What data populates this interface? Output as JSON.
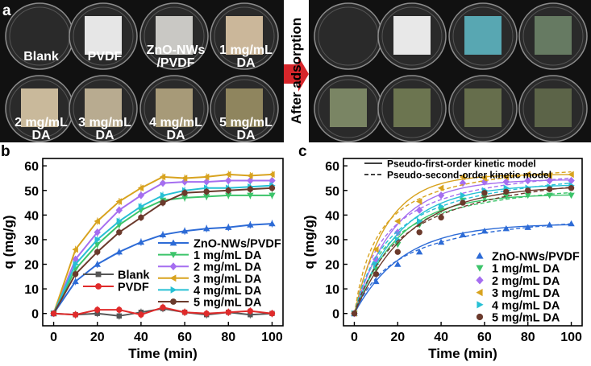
{
  "panel_a": {
    "letter": "a",
    "arrow_label": "After adsorption",
    "before_labels": [
      "Blank",
      "PVDF",
      "ZnO-NWs\n/PVDF",
      "1 mg/mL\nDA",
      "2 mg/mL\nDA",
      "3 mg/mL\nDA",
      "4 mg/mL\nDA",
      "5 mg/mL\nDA"
    ],
    "before_sample_colors": [
      null,
      "#e6e6e6",
      "#c9c8c4",
      "#cbb79a",
      "#c9b99b",
      "#b8ab90",
      "#a79a78",
      "#8f855e"
    ],
    "after_sample_colors": [
      null,
      "#e8e8e8",
      "#58a7b2",
      "#667a62",
      "#7a8564",
      "#6c7550",
      "#666e4c",
      "#5c6448"
    ],
    "colors": {
      "panel_background": "#111111",
      "dish_rim": "#8c8c8c",
      "dish_fill": "#2a2a2a",
      "label_text": "#ffffff",
      "arrow": "#d7262b"
    }
  },
  "panel_b": {
    "letter": "b"
  },
  "panel_c": {
    "letter": "c",
    "model_legend": [
      "Pseudo-first-order kinetic model",
      "Pseudo-second-order kinetic model"
    ]
  },
  "chart_data": [
    {
      "panel": "b",
      "type": "line",
      "xlabel": "Time (min)",
      "ylabel": "q (mg/g)",
      "xlim": [
        -5,
        105
      ],
      "ylim": [
        -5,
        63
      ],
      "xticks": [
        0,
        20,
        40,
        60,
        80,
        100
      ],
      "yticks": [
        0,
        10,
        20,
        30,
        40,
        50,
        60
      ],
      "x": [
        0,
        10,
        20,
        30,
        40,
        50,
        60,
        70,
        80,
        90,
        100
      ],
      "legend_position": "lower-right",
      "series": [
        {
          "name": "ZnO-NWs/PVDF",
          "color": "#2d6bd6",
          "marker": "triangle-up",
          "values": [
            0,
            13,
            20,
            25,
            29,
            32,
            33.5,
            34.5,
            35,
            36,
            36.5
          ]
        },
        {
          "name": "1 mg/mL DA",
          "color": "#3cc46a",
          "marker": "triangle-down",
          "values": [
            0,
            18,
            28,
            36,
            42,
            46,
            47,
            47.5,
            48,
            48,
            48
          ]
        },
        {
          "name": "2 mg/mL DA",
          "color": "#a56ef0",
          "marker": "diamond",
          "values": [
            0,
            22,
            33,
            42,
            48,
            53,
            53.5,
            53.5,
            54,
            54,
            54
          ]
        },
        {
          "name": "3 mg/mL DA",
          "color": "#d8a31f",
          "marker": "triangle-left",
          "values": [
            0,
            26,
            37.5,
            45.5,
            51,
            55.5,
            55,
            55.5,
            56.5,
            56,
            56.5
          ]
        },
        {
          "name": "4 mg/mL DA",
          "color": "#26c0d4",
          "marker": "triangle-right",
          "values": [
            0,
            20,
            30,
            37.5,
            43.5,
            48,
            50,
            51,
            51,
            51.5,
            52
          ]
        },
        {
          "name": "5 mg/mL DA",
          "color": "#6b3a2c",
          "marker": "circle",
          "values": [
            0,
            16,
            25,
            33,
            39,
            45,
            49,
            49.5,
            50,
            50.5,
            51
          ]
        },
        {
          "name": "Blank",
          "color": "#555555",
          "marker": "square",
          "values": [
            0,
            -0.5,
            0,
            -1,
            0.5,
            2,
            0.5,
            -0.5,
            0.5,
            -0.5,
            0
          ]
        },
        {
          "name": "PVDF",
          "color": "#e02b2b",
          "marker": "circle",
          "values": [
            0,
            -0.5,
            1.5,
            1.5,
            -0.5,
            2.5,
            0.5,
            0,
            0.5,
            1,
            0
          ]
        }
      ]
    },
    {
      "panel": "c",
      "type": "scatter",
      "xlabel": "Time (min)",
      "ylabel": "q (mg/g)",
      "xlim": [
        -5,
        105
      ],
      "ylim": [
        -5,
        63
      ],
      "xticks": [
        0,
        20,
        40,
        60,
        80,
        100
      ],
      "yticks": [
        0,
        10,
        20,
        30,
        40,
        50,
        60
      ],
      "x": [
        0,
        10,
        20,
        30,
        40,
        50,
        60,
        70,
        80,
        90,
        100
      ],
      "legend_position": "lower-right",
      "series": [
        {
          "name": "ZnO-NWs/PVDF",
          "color": "#2d6bd6",
          "marker": "triangle-up",
          "values": [
            0,
            13,
            20,
            25,
            29,
            32,
            33.5,
            34.5,
            35,
            36,
            36.5
          ],
          "pfo": {
            "qe": 36.5,
            "k1": 0.045
          },
          "pso": {
            "qe": 44,
            "k2": 0.0011
          }
        },
        {
          "name": "1 mg/mL DA",
          "color": "#3cc46a",
          "marker": "triangle-down",
          "values": [
            0,
            18,
            28,
            36,
            42,
            46,
            47,
            47.5,
            48,
            48,
            48
          ],
          "pfo": {
            "qe": 48.5,
            "k1": 0.05
          },
          "pso": {
            "qe": 57,
            "k2": 0.0011
          }
        },
        {
          "name": "2 mg/mL DA",
          "color": "#a56ef0",
          "marker": "diamond",
          "values": [
            0,
            22,
            33,
            42,
            48,
            53,
            53.5,
            53.5,
            54,
            54,
            54
          ],
          "pfo": {
            "qe": 54.5,
            "k1": 0.055
          },
          "pso": {
            "qe": 63,
            "k2": 0.0011
          }
        },
        {
          "name": "3 mg/mL DA",
          "color": "#d8a31f",
          "marker": "triangle-left",
          "values": [
            0,
            26,
            37.5,
            45.5,
            51,
            55.5,
            55,
            55.5,
            56.5,
            56,
            56.5
          ],
          "pfo": {
            "qe": 56.5,
            "k1": 0.068
          },
          "pso": {
            "qe": 64,
            "k2": 0.0014
          }
        },
        {
          "name": "4 mg/mL DA",
          "color": "#26c0d4",
          "marker": "triangle-right",
          "values": [
            0,
            20,
            30,
            37.5,
            43.5,
            48,
            50,
            51,
            51,
            51.5,
            52
          ],
          "pfo": {
            "qe": 52.5,
            "k1": 0.048
          },
          "pso": {
            "qe": 62,
            "k2": 0.00095
          }
        },
        {
          "name": "5 mg/mL DA",
          "color": "#6b3a2c",
          "marker": "circle",
          "values": [
            0,
            16,
            25,
            33,
            39,
            45,
            49,
            49.5,
            50,
            50.5,
            51
          ],
          "pfo": {
            "qe": 52,
            "k1": 0.04
          },
          "pso": {
            "qe": 63,
            "k2": 0.0007
          }
        }
      ]
    }
  ]
}
